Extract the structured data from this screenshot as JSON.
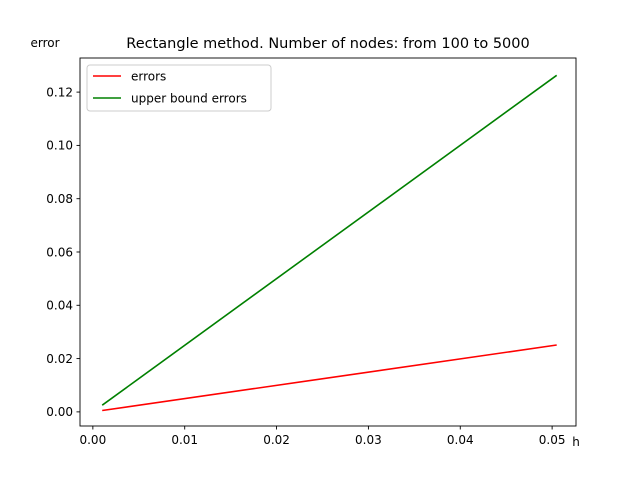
{
  "chart_data": {
    "type": "line",
    "title": "Rectangle method. Number of nodes: from 100 to 5000",
    "xlabel": "h",
    "ylabel": "error",
    "xlim": [
      -0.0014,
      0.0526
    ],
    "ylim": [
      -0.0053,
      0.1328
    ],
    "xticks": [
      0.0,
      0.01,
      0.02,
      0.03,
      0.04,
      0.05
    ],
    "xtick_labels": [
      "0.00",
      "0.01",
      "0.02",
      "0.03",
      "0.04",
      "0.05"
    ],
    "yticks": [
      0.0,
      0.02,
      0.04,
      0.06,
      0.08,
      0.1,
      0.12
    ],
    "ytick_labels": [
      "0.00",
      "0.02",
      "0.04",
      "0.06",
      "0.08",
      "0.10",
      "0.12"
    ],
    "grid": false,
    "legend_position": "upper-left",
    "series": [
      {
        "name": "errors",
        "color": "#ff0000",
        "x": [
          0.00102,
          0.0505
        ],
        "y": [
          0.0005,
          0.0251
        ]
      },
      {
        "name": "upper bound errors",
        "color": "#008000",
        "x": [
          0.00102,
          0.0505
        ],
        "y": [
          0.0025,
          0.1263
        ]
      }
    ]
  }
}
